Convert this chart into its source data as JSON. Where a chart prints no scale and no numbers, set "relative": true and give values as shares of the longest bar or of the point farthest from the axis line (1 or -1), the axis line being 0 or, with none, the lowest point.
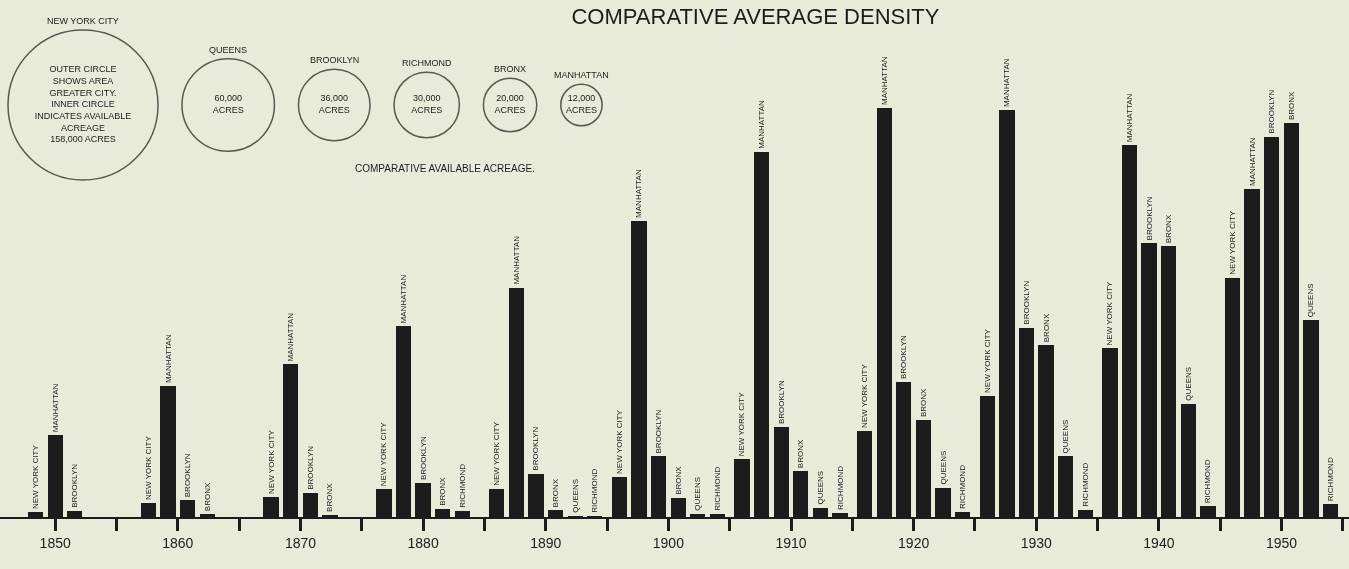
{
  "chart_data": [
    {
      "type": "other",
      "categories": [
        "NEW YORK CITY",
        "QUEENS",
        "BROOKLYN",
        "RICHMOND",
        "BRONX",
        "MANHATTAN"
      ],
      "values": [
        158000,
        60000,
        36000,
        30000,
        20000,
        12000
      ],
      "value_labels": [
        "OUTER CIRCLE\nSHOWS AREA\nGREATER CITY.\nINNER CIRCLE\nINDICATES AVAILABLE\nACREAGE\n158,000 ACRES",
        "60,000\nACRES",
        "36,000\nACRES",
        "30,000\nACRES",
        "20,000\nACRES",
        "12,000\nACRES"
      ],
      "annotations": [
        "COMPARATIVE AVAILABLE ACREAGE."
      ]
    },
    {
      "type": "bar",
      "title": "COMPARATIVE AVERAGE DENSITY",
      "relative": true,
      "series": [
        {
          "name": "NEW YORK CITY",
          "color": "#1c1c1c",
          "x": [
            1848.4,
            1857.6,
            1867.6,
            1876.8,
            1886,
            1896,
            1906,
            1916,
            1926,
            1936,
            1946
          ],
          "values": [
            0.012,
            0.034,
            0.049,
            0.068,
            0.069,
            0.098,
            0.141,
            0.21,
            0.296,
            0.412,
            0.585
          ]
        },
        {
          "name": "MANHATTAN",
          "color": "#1c1c1c",
          "x": [
            1850,
            1859.2,
            1869.2,
            1878.4,
            1887.6,
            1897.6,
            1907.6,
            1917.6,
            1927.6,
            1937.6,
            1947.6
          ],
          "values": [
            0.2,
            0.32,
            0.373,
            0.466,
            0.561,
            0.724,
            0.893,
            1,
            0.995,
            0.909,
            0.802
          ]
        },
        {
          "name": "BROOKLYN",
          "color": "#1c1c1c",
          "x": [
            1851.6,
            1860.8,
            1870.8,
            1880,
            1889.2,
            1899.2,
            1909.2,
            1919.2,
            1929.2,
            1939.2,
            1949.2
          ],
          "values": [
            0.015,
            0.041,
            0.059,
            0.083,
            0.106,
            0.148,
            0.22,
            0.33,
            0.463,
            0.669,
            0.93
          ]
        },
        {
          "name": "BRONX",
          "color": "#1c1c1c",
          "x": [
            1862.4,
            1872.4,
            1881.6,
            1890.8,
            1900.8,
            1910.8,
            1920.8,
            1930.8,
            1940.8,
            1950.8
          ],
          "values": [
            0.007,
            0.005,
            0.02,
            0.016,
            0.047,
            0.112,
            0.237,
            0.42,
            0.662,
            0.963
          ]
        },
        {
          "name": "QUEENS",
          "color": "#1c1c1c",
          "x": [
            1892.4,
            1902.4,
            1912.4,
            1922.4,
            1932.4,
            1942.4,
            1952.4
          ],
          "values": [
            0.003,
            0.008,
            0.023,
            0.072,
            0.148,
            0.277,
            0.481
          ]
        },
        {
          "name": "RICHMOND",
          "color": "#1c1c1c",
          "x": [
            1883.2,
            1894,
            1904,
            1914,
            1924,
            1934,
            1944,
            1954
          ],
          "values": [
            0.015,
            0.003,
            0.008,
            0.01,
            0.012,
            0.018,
            0.026,
            0.031
          ]
        }
      ],
      "xlim": [
        1845.5,
        1955.5
      ],
      "xticks": [
        1850,
        1860,
        1870,
        1880,
        1890,
        1900,
        1910,
        1920,
        1930,
        1940,
        1950,
        {
          "value": 1855,
          "label": null
        },
        {
          "value": 1865,
          "label": null
        },
        {
          "value": 1875,
          "label": null
        },
        {
          "value": 1885,
          "label": null
        },
        {
          "value": 1895,
          "label": null
        },
        {
          "value": 1905,
          "label": null
        },
        {
          "value": 1915,
          "label": null
        },
        {
          "value": 1925,
          "label": null
        },
        {
          "value": 1935,
          "label": null
        },
        {
          "value": 1945,
          "label": null
        },
        {
          "value": 1955,
          "label": null
        }
      ]
    }
  ]
}
